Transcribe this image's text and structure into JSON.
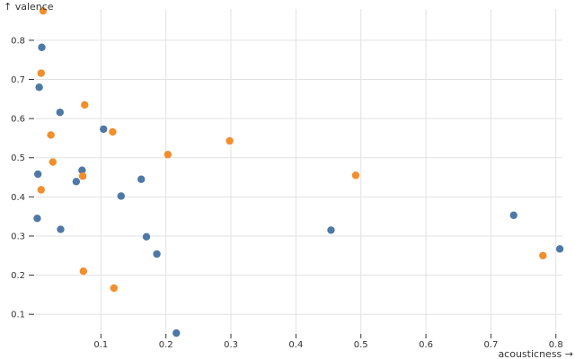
{
  "chart_data": {
    "type": "scatter",
    "xlabel": "acousticness →",
    "ylabel": "↑ valence",
    "xlim": [
      0,
      0.81
    ],
    "ylim": [
      0.05,
      0.88
    ],
    "x_ticks": [
      "0.1",
      "0.2",
      "0.3",
      "0.4",
      "0.5",
      "0.6",
      "0.7",
      "0.8"
    ],
    "y_ticks": [
      "0.1",
      "0.2",
      "0.3",
      "0.4",
      "0.5",
      "0.6",
      "0.7",
      "0.8"
    ],
    "grid": true,
    "legend": "none",
    "colors": [
      "#4e79a7",
      "#f28e2c"
    ],
    "series": [
      {
        "color": "#4e79a7",
        "points": [
          {
            "x": 0.009,
            "y": 0.782
          },
          {
            "x": 0.005,
            "y": 0.68
          },
          {
            "x": 0.037,
            "y": 0.616
          },
          {
            "x": 0.104,
            "y": 0.573
          },
          {
            "x": 0.071,
            "y": 0.468
          },
          {
            "x": 0.003,
            "y": 0.458
          },
          {
            "x": 0.062,
            "y": 0.439
          },
          {
            "x": 0.162,
            "y": 0.445
          },
          {
            "x": 0.131,
            "y": 0.402
          },
          {
            "x": 0.002,
            "y": 0.345
          },
          {
            "x": 0.038,
            "y": 0.317
          },
          {
            "x": 0.17,
            "y": 0.298
          },
          {
            "x": 0.186,
            "y": 0.254
          },
          {
            "x": 0.216,
            "y": 0.052
          },
          {
            "x": 0.454,
            "y": 0.315
          },
          {
            "x": 0.735,
            "y": 0.353
          },
          {
            "x": 0.806,
            "y": 0.267
          }
        ]
      },
      {
        "color": "#f28e2c",
        "points": [
          {
            "x": 0.011,
            "y": 0.875
          },
          {
            "x": 0.008,
            "y": 0.716
          },
          {
            "x": 0.075,
            "y": 0.635
          },
          {
            "x": 0.118,
            "y": 0.566
          },
          {
            "x": 0.023,
            "y": 0.558
          },
          {
            "x": 0.298,
            "y": 0.543
          },
          {
            "x": 0.203,
            "y": 0.508
          },
          {
            "x": 0.026,
            "y": 0.489
          },
          {
            "x": 0.072,
            "y": 0.453
          },
          {
            "x": 0.492,
            "y": 0.455
          },
          {
            "x": 0.008,
            "y": 0.418
          },
          {
            "x": 0.073,
            "y": 0.21
          },
          {
            "x": 0.12,
            "y": 0.167
          },
          {
            "x": 0.78,
            "y": 0.25
          }
        ]
      }
    ]
  }
}
